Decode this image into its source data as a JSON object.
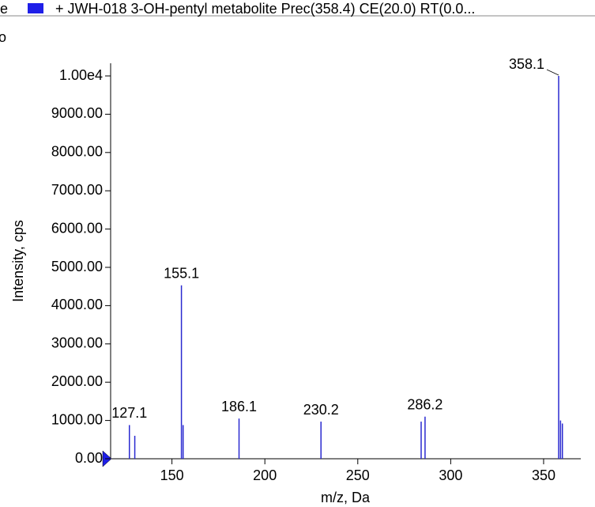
{
  "chart_data": {
    "type": "stick",
    "legend": "+ JWH-018 3-OH-pentyl metabolite Prec(358.4) CE(20.0) RT(0.0...",
    "fragments": [
      "e",
      "o"
    ],
    "xlabel": "m/z, Da",
    "ylabel": "Intensity, cps",
    "color": "#2a2ad0",
    "legend_color": "#1f1fe8",
    "x": [
      127.1,
      130.0,
      155.1,
      156.0,
      186.1,
      230.2,
      284.1,
      286.2,
      358.1,
      359.1,
      360.1
    ],
    "values": [
      880,
      600,
      4530,
      880,
      1050,
      970,
      970,
      1100,
      10000,
      1000,
      920
    ],
    "labels": [
      "127.1",
      null,
      "155.1",
      null,
      "186.1",
      "230.2",
      null,
      "286.2",
      "358.1",
      null,
      null
    ],
    "xlim": [
      117,
      370
    ],
    "ylim": [
      0,
      10000
    ],
    "xticks": [
      150,
      200,
      250,
      300,
      350
    ],
    "yticks": [
      {
        "value": 0,
        "label": "0.00"
      },
      {
        "value": 1000,
        "label": "1000.00"
      },
      {
        "value": 2000,
        "label": "2000.00"
      },
      {
        "value": 3000,
        "label": "3000.00"
      },
      {
        "value": 4000,
        "label": "4000.00"
      },
      {
        "value": 5000,
        "label": "5000.00"
      },
      {
        "value": 6000,
        "label": "6000.00"
      },
      {
        "value": 7000,
        "label": "7000.00"
      },
      {
        "value": 8000,
        "label": "8000.00"
      },
      {
        "value": 9000,
        "label": "9000.00"
      },
      {
        "value": 10000,
        "label": "1.00e4"
      }
    ]
  }
}
